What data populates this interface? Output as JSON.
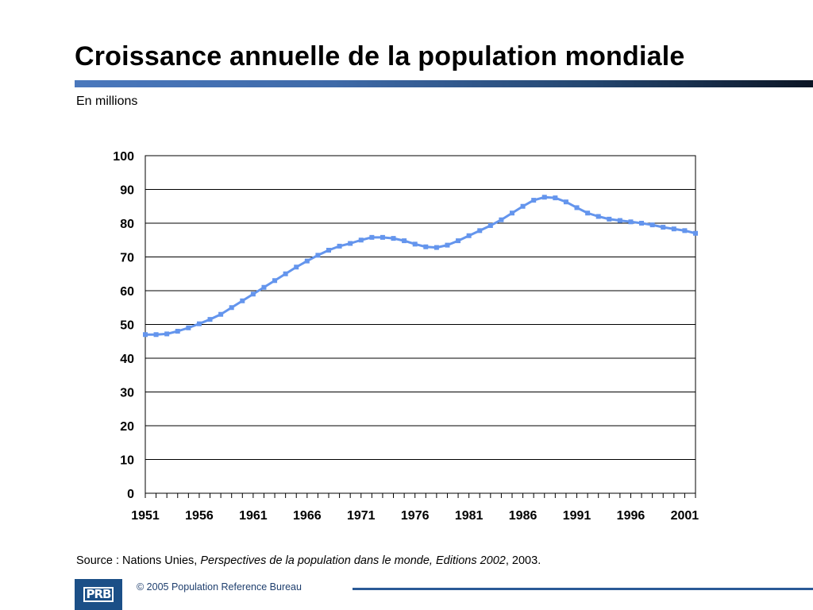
{
  "slide": {
    "title": "Croissance annuelle de la population mondiale",
    "subtitle": "En millions",
    "source_prefix": "Source : Nations Unies, ",
    "source_title": "Perspectives de la population dans le monde, Editions 2002",
    "source_suffix": ", 2003.",
    "logo_text": "PRB",
    "copyright": "© 2005 Population Reference Bureau"
  },
  "colors": {
    "title_bar": "#3f6aa8",
    "series": "#6495ed",
    "gridline": "#000000",
    "logo_bg": "#1b4f87"
  },
  "chart_data": {
    "type": "line",
    "title": "",
    "xlabel": "",
    "ylabel": "",
    "ylim": [
      0,
      100
    ],
    "yticks": [
      0,
      10,
      20,
      30,
      40,
      50,
      60,
      70,
      80,
      90,
      100
    ],
    "xlim": [
      1951,
      2002
    ],
    "xtick_labels": [
      "1951",
      "1956",
      "1961",
      "1966",
      "1971",
      "1976",
      "1981",
      "1986",
      "1991",
      "1996",
      "2001"
    ],
    "grid": true,
    "legend": "none",
    "x": [
      1951,
      1952,
      1953,
      1954,
      1955,
      1956,
      1957,
      1958,
      1959,
      1960,
      1961,
      1962,
      1963,
      1964,
      1965,
      1966,
      1967,
      1968,
      1969,
      1970,
      1971,
      1972,
      1973,
      1974,
      1975,
      1976,
      1977,
      1978,
      1979,
      1980,
      1981,
      1982,
      1983,
      1984,
      1985,
      1986,
      1987,
      1988,
      1989,
      1990,
      1991,
      1992,
      1993,
      1994,
      1995,
      1996,
      1997,
      1998,
      1999,
      2000,
      2001,
      2002
    ],
    "series": [
      {
        "values": [
          47.0,
          47.0,
          47.2,
          48.0,
          49.0,
          50.2,
          51.5,
          53.0,
          55.0,
          57.0,
          59.0,
          61.0,
          63.0,
          65.0,
          67.0,
          68.8,
          70.5,
          72.0,
          73.2,
          74.0,
          75.0,
          75.8,
          75.8,
          75.5,
          74.8,
          73.8,
          73.0,
          72.8,
          73.5,
          74.8,
          76.3,
          77.8,
          79.3,
          81.0,
          83.0,
          85.0,
          86.8,
          87.7,
          87.5,
          86.3,
          84.6,
          83.0,
          82.0,
          81.2,
          80.8,
          80.4,
          80.0,
          79.5,
          78.8,
          78.3,
          77.8,
          77.0
        ]
      }
    ]
  }
}
